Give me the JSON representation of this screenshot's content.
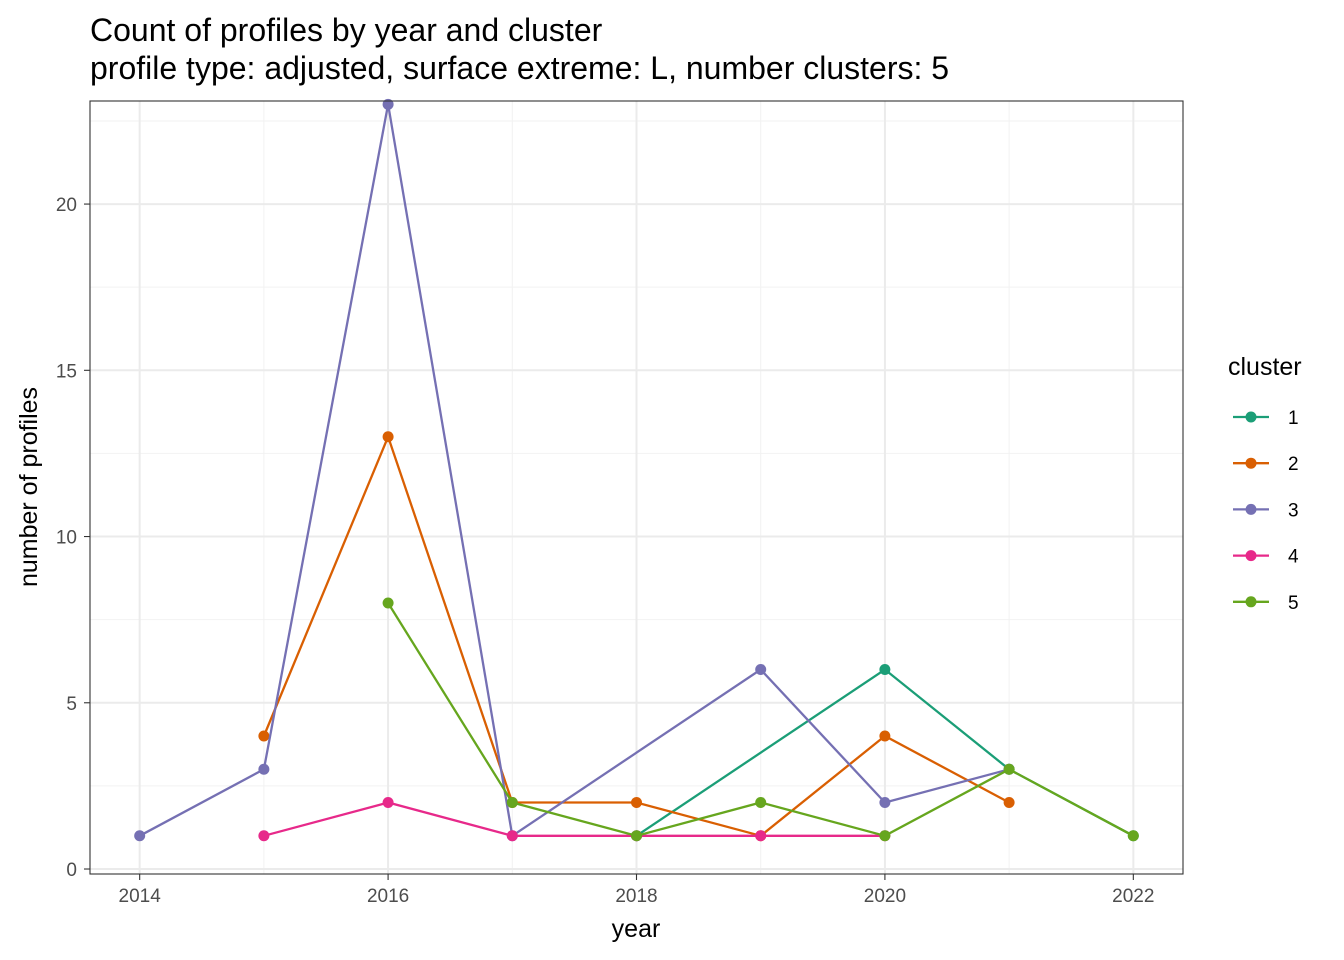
{
  "chart_data": {
    "type": "line",
    "title": "Count of profiles by year and cluster",
    "subtitle": "profile type: adjusted, surface extreme: L, number clusters: 5",
    "xlabel": "year",
    "ylabel": "number of profiles",
    "xlim": [
      2013.6,
      2022.4
    ],
    "ylim": [
      -0.15,
      23.1
    ],
    "x_ticks": [
      2014,
      2016,
      2018,
      2020,
      2022
    ],
    "y_ticks": [
      0,
      5,
      10,
      15,
      20
    ],
    "x_tick_labels": [
      "2014",
      "2016",
      "2018",
      "2020",
      "2022"
    ],
    "y_tick_labels": [
      "0",
      "5",
      "10",
      "15",
      "20"
    ],
    "grid": true,
    "legend_title": "cluster",
    "legend_position": "right",
    "series": [
      {
        "name": "1",
        "color": "#1b9e77",
        "points": [
          [
            2018,
            1
          ],
          [
            2020,
            6
          ],
          [
            2021,
            3
          ],
          [
            2022,
            1
          ]
        ]
      },
      {
        "name": "2",
        "color": "#d95f02",
        "points": [
          [
            2015,
            4
          ],
          [
            2016,
            13
          ],
          [
            2017,
            2
          ],
          [
            2018,
            2
          ],
          [
            2019,
            1
          ],
          [
            2020,
            4
          ],
          [
            2021,
            2
          ]
        ]
      },
      {
        "name": "3",
        "color": "#7570b3",
        "points": [
          [
            2014,
            1
          ],
          [
            2015,
            3
          ],
          [
            2016,
            23
          ],
          [
            2017,
            1
          ],
          [
            2019,
            6
          ],
          [
            2020,
            2
          ],
          [
            2021,
            3
          ]
        ]
      },
      {
        "name": "4",
        "color": "#e7298a",
        "points": [
          [
            2015,
            1
          ],
          [
            2016,
            2
          ],
          [
            2017,
            1
          ],
          [
            2018,
            1
          ],
          [
            2019,
            1
          ],
          [
            2020,
            1
          ]
        ]
      },
      {
        "name": "5",
        "color": "#66a61e",
        "points": [
          [
            2016,
            8
          ],
          [
            2017,
            2
          ],
          [
            2018,
            1
          ],
          [
            2019,
            2
          ],
          [
            2020,
            1
          ],
          [
            2021,
            3
          ],
          [
            2022,
            1
          ]
        ]
      }
    ]
  }
}
